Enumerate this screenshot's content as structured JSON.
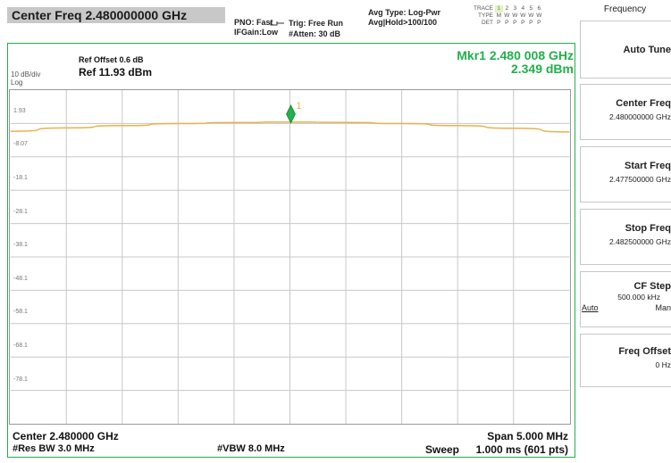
{
  "header": {
    "center_freq": "Center Freq 2.480000000 GHz",
    "pno": "PNO: Fast",
    "ifgain": "IFGain:Low",
    "trig": "Trig: Free Run",
    "atten": "#Atten: 30 dB",
    "avg_type": "Avg Type: Log-Pwr",
    "avg_hold": "Avg|Hold>100/100",
    "trace_label": "TRACE",
    "trace_nums": [
      "1",
      "2",
      "3",
      "4",
      "5",
      "6"
    ],
    "type_label": "TYPE",
    "type_vals": [
      "M",
      "W",
      "W",
      "W",
      "W",
      "W"
    ],
    "det_label": "DET",
    "det_vals": [
      "P",
      "P",
      "P",
      "P",
      "P",
      "P"
    ]
  },
  "display": {
    "ref_offset": "Ref Offset 0.6 dB",
    "ref_level": "Ref 11.93 dBm",
    "scale": "10 dB/div",
    "scale_type": "Log",
    "marker_freq": "Mkr1 2.480 008 GHz",
    "marker_amp": "2.349 dBm",
    "marker_label": "1"
  },
  "footer": {
    "center": "Center 2.480000 GHz",
    "res_bw": "#Res BW 3.0 MHz",
    "vbw": "#VBW 8.0 MHz",
    "span": "Span 5.000 MHz",
    "sweep_label": "Sweep",
    "sweep": "1.000 ms (601 pts)"
  },
  "softkeys": {
    "menu_title": "Frequency",
    "items": [
      {
        "title": "Auto Tune",
        "value": ""
      },
      {
        "title": "Center Freq",
        "value": "2.480000000 GHz"
      },
      {
        "title": "Start Freq",
        "value": "2.477500000 GHz"
      },
      {
        "title": "Stop Freq",
        "value": "2.482500000 GHz"
      },
      {
        "title": "CF Step",
        "value": "500.000 kHz",
        "auto": "Auto",
        "man": "Man"
      },
      {
        "title": "Freq Offset",
        "value": "0 Hz"
      }
    ]
  },
  "colors": {
    "trace": "#e8b24a",
    "marker": "#21b04b",
    "frame": "#21b04b",
    "grid": "#c8c8c8"
  },
  "chart_data": {
    "type": "line",
    "title": "",
    "xlabel": "",
    "ylabel": "",
    "x_range_ghz": [
      2.4775,
      2.4825
    ],
    "ylim": [
      -88.07,
      11.93
    ],
    "y_ticks": [
      "1.93",
      "-8.07",
      "-18.1",
      "-28.1",
      "-38.1",
      "-48.1",
      "-58.1",
      "-68.1",
      "-78.1"
    ],
    "series": [
      {
        "x": [
          2.4775,
          2.478,
          2.4785,
          2.479,
          2.4795,
          2.48,
          2.4805,
          2.481,
          2.4815,
          2.482,
          2.4825
        ],
        "values": [
          -0.4,
          0.6,
          1.3,
          1.9,
          2.2,
          2.35,
          2.25,
          1.9,
          1.3,
          0.5,
          -0.6
        ]
      }
    ],
    "marker": {
      "x": 2.480008,
      "y": 2.349
    },
    "grid": true
  }
}
